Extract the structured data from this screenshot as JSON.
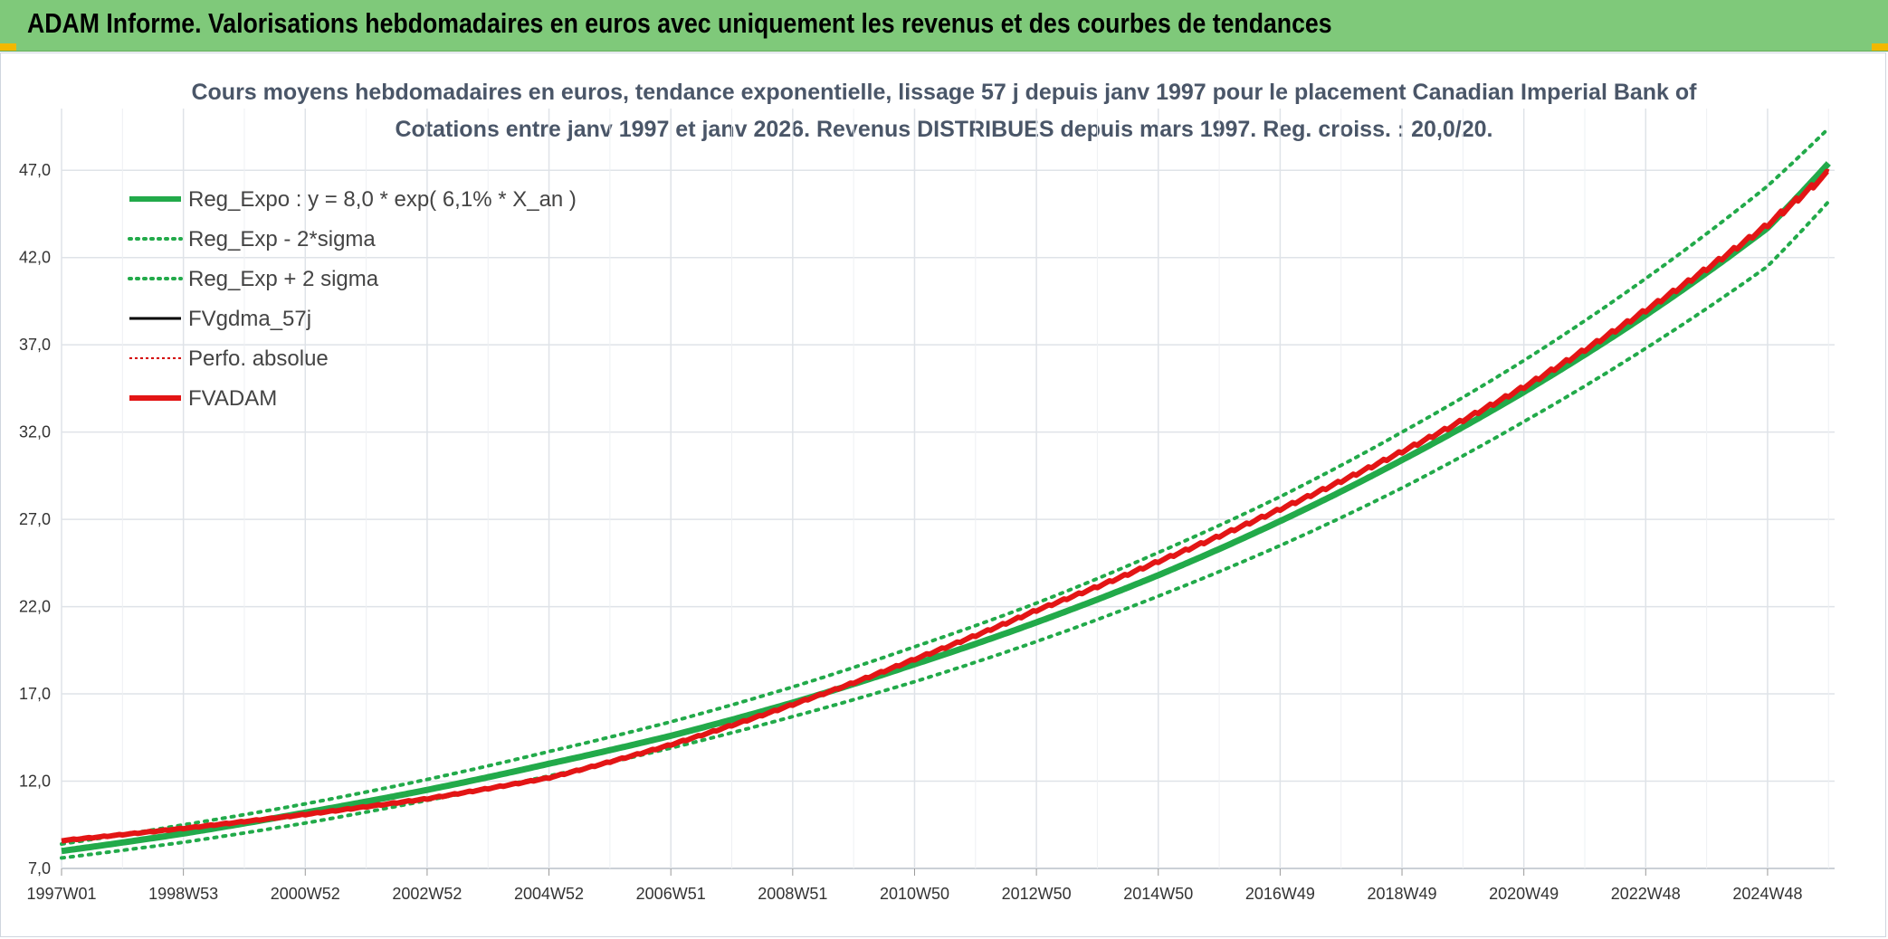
{
  "banner": {
    "title": "ADAM Informe. Valorisations hebdomadaires en euros avec uniquement les revenus et des courbes de tendances"
  },
  "colors": {
    "banner_bg": "#7fc97a",
    "trend": "#22aa4a",
    "band": "#22aa4a",
    "fvgdma": "#000000",
    "perfo": "#d40000",
    "fvadam": "#e31515",
    "grid": "#dfe3e8"
  },
  "chart_data": {
    "type": "line",
    "title_lines": [
      "Cours moyens hebdomadaires en euros, tendance exponentielle, lissage 57 j depuis janv 1997 pour le placement Canadian Imperial Bank of",
      "Cotations entre janv 1997 et janv 2026. Revenus DISTRIBUES depuis mars 1997. Reg. croiss. : 20,0/20."
    ],
    "ylim": [
      7.0,
      49.5
    ],
    "yticks": [
      "7,0",
      "12,0",
      "17,0",
      "22,0",
      "27,0",
      "32,0",
      "37,0",
      "42,0",
      "47,0"
    ],
    "ytick_values": [
      7,
      12,
      17,
      22,
      27,
      32,
      37,
      42,
      47
    ],
    "xlim_years": [
      1997.0,
      2026.1
    ],
    "xticks": [
      "1997W01",
      "1998W53",
      "2000W52",
      "2002W52",
      "2004W52",
      "2006W51",
      "2008W51",
      "2010W50",
      "2012W50",
      "2014W50",
      "2016W49",
      "2018W49",
      "2020W49",
      "2022W48",
      "2024W48"
    ],
    "grid": true,
    "legend_position": "top-left",
    "legend": [
      {
        "label": "Reg_Expo : y = 8,0 * exp( 6,1% *  X_an )",
        "style": "solid-thick",
        "color": "#22aa4a"
      },
      {
        "label": "Reg_Exp - 2*sigma",
        "style": "dotted",
        "color": "#22aa4a"
      },
      {
        "label": "Reg_Exp + 2 sigma",
        "style": "dotted",
        "color": "#22aa4a"
      },
      {
        "label": "FVgdma_57j",
        "style": "solid",
        "color": "#000000"
      },
      {
        "label": "Perfo. absolue",
        "style": "dotted-thin",
        "color": "#d40000"
      },
      {
        "label": "FVADAM",
        "style": "solid-thick",
        "color": "#e31515"
      }
    ],
    "x": [
      1997,
      1999,
      2001,
      2003,
      2005,
      2007,
      2009,
      2011,
      2013,
      2015,
      2017,
      2019,
      2021,
      2023,
      2025,
      2026
    ],
    "series": [
      {
        "name": "Reg_Expo : y = 8,0 * exp( 6,1% *  X_an )",
        "values": [
          8.0,
          9.0,
          10.2,
          11.5,
          13.0,
          14.6,
          16.5,
          18.7,
          21.1,
          23.8,
          26.9,
          30.4,
          34.3,
          38.7,
          43.7,
          47.4
        ]
      },
      {
        "name": "Reg_Exp - 2*sigma",
        "values": [
          7.6,
          8.5,
          9.6,
          10.9,
          12.3,
          13.9,
          15.7,
          17.7,
          20.0,
          22.6,
          25.5,
          28.8,
          32.6,
          36.8,
          41.5,
          45.2
        ]
      },
      {
        "name": "Reg_Exp + 2 sigma",
        "values": [
          8.4,
          9.5,
          10.7,
          12.1,
          13.7,
          15.4,
          17.4,
          19.7,
          22.2,
          25.1,
          28.3,
          32.0,
          36.1,
          40.8,
          46.1,
          49.4
        ]
      },
      {
        "name": "FVgdma_57j",
        "values": [
          8.6,
          9.3,
          10.1,
          11.0,
          12.2,
          14.1,
          16.4,
          19.0,
          21.8,
          24.6,
          27.6,
          30.9,
          34.6,
          39.0,
          43.9,
          46.9
        ]
      },
      {
        "name": "FVADAM",
        "values": [
          8.6,
          9.3,
          10.1,
          11.0,
          12.2,
          14.1,
          16.4,
          19.0,
          21.8,
          24.6,
          27.6,
          30.9,
          34.6,
          39.0,
          43.9,
          46.9
        ]
      }
    ]
  }
}
